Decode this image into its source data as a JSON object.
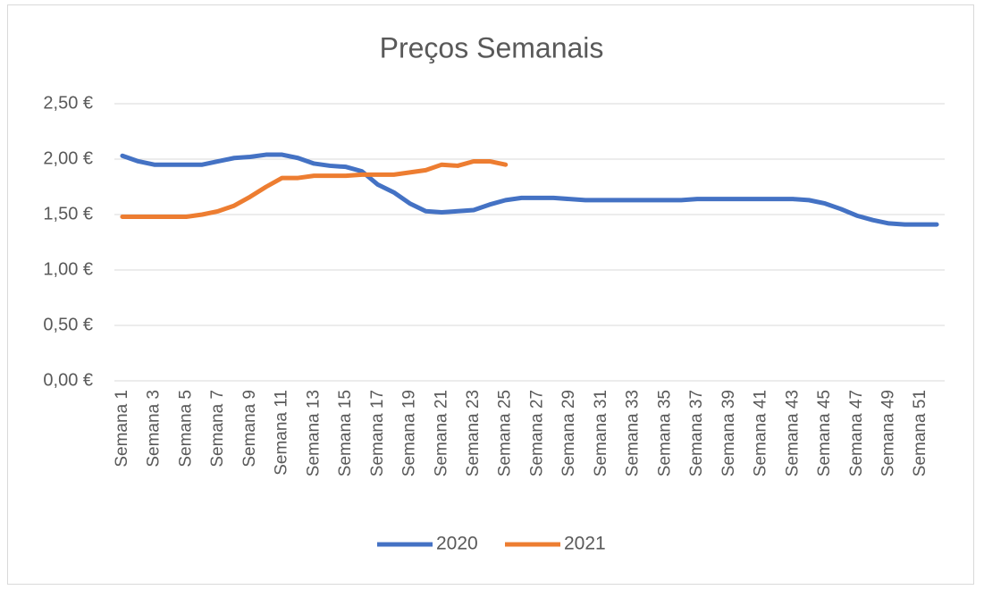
{
  "chart_data": {
    "type": "line",
    "title": "Preços Semanais",
    "categories": [
      "Semana 1",
      null,
      "Semana 3",
      null,
      "Semana 5",
      null,
      "Semana 7",
      null,
      "Semana 9",
      null,
      "Semana 11",
      null,
      "Semana 13",
      null,
      "Semana 15",
      null,
      "Semana 17",
      null,
      "Semana 19",
      null,
      "Semana 21",
      null,
      "Semana 23",
      null,
      "Semana 25",
      null,
      "Semana 27",
      null,
      "Semana 29",
      null,
      "Semana 31",
      null,
      "Semana 33",
      null,
      "Semana 35",
      null,
      "Semana 37",
      null,
      "Semana 39",
      null,
      "Semana 41",
      null,
      "Semana 43",
      null,
      "Semana 45",
      null,
      "Semana 47",
      null,
      "Semana 49",
      null,
      "Semana 51",
      null
    ],
    "series": [
      {
        "name": "2020",
        "color": "#4472c4",
        "values": [
          2.03,
          1.98,
          1.95,
          1.95,
          1.95,
          1.95,
          1.98,
          2.01,
          2.02,
          2.04,
          2.04,
          2.01,
          1.96,
          1.94,
          1.93,
          1.89,
          1.77,
          1.7,
          1.6,
          1.53,
          1.52,
          1.53,
          1.54,
          1.59,
          1.63,
          1.65,
          1.65,
          1.65,
          1.64,
          1.63,
          1.63,
          1.63,
          1.63,
          1.63,
          1.63,
          1.63,
          1.64,
          1.64,
          1.64,
          1.64,
          1.64,
          1.64,
          1.64,
          1.63,
          1.6,
          1.55,
          1.49,
          1.45,
          1.42,
          1.41,
          1.41,
          1.41
        ]
      },
      {
        "name": "2021",
        "color": "#ed7d31",
        "values": [
          1.48,
          1.48,
          1.48,
          1.48,
          1.48,
          1.5,
          1.53,
          1.58,
          1.66,
          1.75,
          1.83,
          1.83,
          1.85,
          1.85,
          1.85,
          1.86,
          1.86,
          1.86,
          1.88,
          1.9,
          1.95,
          1.94,
          1.98,
          1.98,
          1.95,
          null,
          null,
          null,
          null,
          null,
          null,
          null,
          null,
          null,
          null,
          null,
          null,
          null,
          null,
          null,
          null,
          null,
          null,
          null,
          null,
          null,
          null,
          null,
          null,
          null,
          null,
          null
        ]
      }
    ],
    "ylim": [
      0,
      2.5
    ],
    "yticks": [
      {
        "value": 0,
        "label": "0,00 €"
      },
      {
        "value": 0.5,
        "label": "0,50 €"
      },
      {
        "value": 1,
        "label": "1,00 €"
      },
      {
        "value": 1.5,
        "label": "1,50 €"
      },
      {
        "value": 2,
        "label": "2,00 €"
      },
      {
        "value": 2.5,
        "label": "2,50 €"
      }
    ],
    "grid": true,
    "legend": "bottom"
  }
}
